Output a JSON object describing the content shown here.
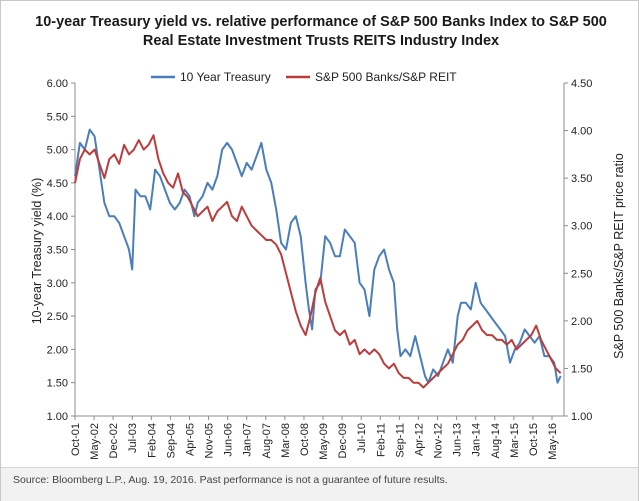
{
  "chart_data": {
    "type": "line",
    "title_line1": "10-year Treasury yield vs. relative performance of S&P 500 Banks Index to S&P 500",
    "title_line2": "Real Estate Investment Trusts REITS Industry Index",
    "ylabel_left": "10-year Treasury yield (%)",
    "ylabel_right": "S&P 500 Banks/S&P REIT price ratio",
    "ylim_left": [
      1.0,
      6.0
    ],
    "ylim_right": [
      1.0,
      4.5
    ],
    "yticks_left": [
      "1.00",
      "1.50",
      "2.00",
      "2.50",
      "3.00",
      "3.50",
      "4.00",
      "4.50",
      "5.00",
      "5.50",
      "6.00"
    ],
    "yticks_right": [
      "1.00",
      "1.50",
      "2.00",
      "2.50",
      "3.00",
      "3.50",
      "4.00",
      "4.50"
    ],
    "x_tick_labels": [
      "Oct-01",
      "May-02",
      "Dec-02",
      "Jul-03",
      "Feb-04",
      "Sep-04",
      "Apr-05",
      "Nov-05",
      "Jun-06",
      "Jan-07",
      "Aug-07",
      "Mar-08",
      "Oct-08",
      "May-09",
      "Dec-09",
      "Jul-10",
      "Feb-11",
      "Sep-11",
      "Apr-12",
      "Nov-12",
      "Jun-13",
      "Jan-14",
      "Aug-14",
      "Mar-15",
      "Oct-15",
      "May-16"
    ],
    "grid": false,
    "legend_position": "top",
    "series": [
      {
        "name": "10 Year Treasury",
        "color": "#4a7ebb",
        "axis": "left",
        "x": [
          2001.75,
          2001.9,
          2002.05,
          2002.2,
          2002.35,
          2002.5,
          2002.65,
          2002.8,
          2002.95,
          2003.1,
          2003.25,
          2003.4,
          2003.5,
          2003.6,
          2003.75,
          2003.9,
          2004.05,
          2004.2,
          2004.35,
          2004.5,
          2004.65,
          2004.8,
          2004.95,
          2005.1,
          2005.25,
          2005.4,
          2005.5,
          2005.65,
          2005.8,
          2005.95,
          2006.1,
          2006.25,
          2006.4,
          2006.55,
          2006.7,
          2006.85,
          2007.0,
          2007.15,
          2007.3,
          2007.45,
          2007.6,
          2007.75,
          2007.9,
          2008.05,
          2008.2,
          2008.35,
          2008.5,
          2008.65,
          2008.8,
          2008.9,
          2009.0,
          2009.1,
          2009.25,
          2009.4,
          2009.55,
          2009.7,
          2009.85,
          2010.0,
          2010.15,
          2010.3,
          2010.45,
          2010.6,
          2010.75,
          2010.9,
          2011.05,
          2011.2,
          2011.35,
          2011.5,
          2011.6,
          2011.7,
          2011.85,
          2012.0,
          2012.15,
          2012.3,
          2012.45,
          2012.55,
          2012.7,
          2012.85,
          2013.0,
          2013.15,
          2013.3,
          2013.45,
          2013.55,
          2013.7,
          2013.85,
          2014.0,
          2014.15,
          2014.3,
          2014.45,
          2014.6,
          2014.75,
          2014.9,
          2015.05,
          2015.2,
          2015.35,
          2015.5,
          2015.65,
          2015.8,
          2015.95,
          2016.1,
          2016.25,
          2016.4,
          2016.5,
          2016.6
        ],
        "y": [
          4.6,
          5.1,
          5.0,
          5.3,
          5.2,
          4.7,
          4.2,
          4.0,
          4.0,
          3.9,
          3.7,
          3.5,
          3.2,
          4.4,
          4.3,
          4.3,
          4.1,
          4.7,
          4.6,
          4.4,
          4.2,
          4.1,
          4.2,
          4.4,
          4.3,
          4.0,
          4.2,
          4.3,
          4.5,
          4.4,
          4.6,
          5.0,
          5.1,
          5.0,
          4.8,
          4.6,
          4.8,
          4.7,
          4.9,
          5.1,
          4.7,
          4.5,
          4.1,
          3.6,
          3.5,
          3.9,
          4.0,
          3.7,
          3.0,
          2.6,
          2.3,
          2.9,
          3.0,
          3.7,
          3.6,
          3.4,
          3.4,
          3.8,
          3.7,
          3.6,
          3.0,
          2.9,
          2.5,
          3.2,
          3.4,
          3.5,
          3.2,
          3.0,
          2.3,
          1.9,
          2.0,
          1.9,
          2.2,
          1.9,
          1.6,
          1.5,
          1.7,
          1.6,
          1.8,
          2.0,
          1.8,
          2.5,
          2.7,
          2.7,
          2.6,
          3.0,
          2.7,
          2.6,
          2.5,
          2.4,
          2.3,
          2.2,
          1.8,
          2.0,
          2.1,
          2.3,
          2.2,
          2.1,
          2.2,
          1.9,
          1.9,
          1.8,
          1.5,
          1.6
        ]
      },
      {
        "name": "S&P 500 Banks/S&P REIT",
        "color": "#be3b3b",
        "axis": "right",
        "x": [
          2001.75,
          2001.9,
          2002.05,
          2002.2,
          2002.35,
          2002.5,
          2002.65,
          2002.8,
          2002.95,
          2003.1,
          2003.25,
          2003.4,
          2003.55,
          2003.7,
          2003.85,
          2004.0,
          2004.15,
          2004.3,
          2004.45,
          2004.6,
          2004.75,
          2004.9,
          2005.05,
          2005.2,
          2005.35,
          2005.5,
          2005.65,
          2005.8,
          2005.95,
          2006.1,
          2006.25,
          2006.4,
          2006.55,
          2006.7,
          2006.85,
          2007.0,
          2007.15,
          2007.3,
          2007.45,
          2007.6,
          2007.75,
          2007.9,
          2008.05,
          2008.2,
          2008.35,
          2008.5,
          2008.65,
          2008.8,
          2008.95,
          2009.1,
          2009.25,
          2009.4,
          2009.55,
          2009.7,
          2009.85,
          2010.0,
          2010.15,
          2010.3,
          2010.45,
          2010.6,
          2010.75,
          2010.9,
          2011.05,
          2011.2,
          2011.35,
          2011.5,
          2011.65,
          2011.8,
          2011.95,
          2012.1,
          2012.25,
          2012.4,
          2012.55,
          2012.7,
          2012.85,
          2013.0,
          2013.15,
          2013.3,
          2013.45,
          2013.6,
          2013.75,
          2013.9,
          2014.05,
          2014.2,
          2014.35,
          2014.5,
          2014.65,
          2014.8,
          2014.95,
          2015.1,
          2015.25,
          2015.4,
          2015.55,
          2015.7,
          2015.85,
          2016.0,
          2016.15,
          2016.3,
          2016.45,
          2016.6
        ],
        "y": [
          3.45,
          3.7,
          3.8,
          3.75,
          3.8,
          3.65,
          3.5,
          3.7,
          3.75,
          3.65,
          3.85,
          3.75,
          3.8,
          3.9,
          3.8,
          3.85,
          3.95,
          3.7,
          3.55,
          3.45,
          3.4,
          3.55,
          3.35,
          3.3,
          3.2,
          3.1,
          3.15,
          3.2,
          3.05,
          3.15,
          3.2,
          3.25,
          3.1,
          3.05,
          3.2,
          3.1,
          3.0,
          2.95,
          2.9,
          2.85,
          2.85,
          2.8,
          2.7,
          2.5,
          2.3,
          2.1,
          1.95,
          1.85,
          2.05,
          2.3,
          2.45,
          2.2,
          2.05,
          1.9,
          1.85,
          1.9,
          1.75,
          1.8,
          1.65,
          1.7,
          1.65,
          1.7,
          1.65,
          1.55,
          1.5,
          1.55,
          1.45,
          1.4,
          1.4,
          1.35,
          1.35,
          1.3,
          1.35,
          1.4,
          1.45,
          1.5,
          1.55,
          1.65,
          1.75,
          1.8,
          1.9,
          1.95,
          2.0,
          1.9,
          1.85,
          1.85,
          1.8,
          1.8,
          1.75,
          1.8,
          1.7,
          1.75,
          1.8,
          1.85,
          1.95,
          1.8,
          1.7,
          1.6,
          1.5,
          1.45
        ]
      }
    ]
  },
  "footer": {
    "source": "Source: Bloomberg L.P., Aug. 19, 2016. Past performance is not a guarantee of future results."
  }
}
